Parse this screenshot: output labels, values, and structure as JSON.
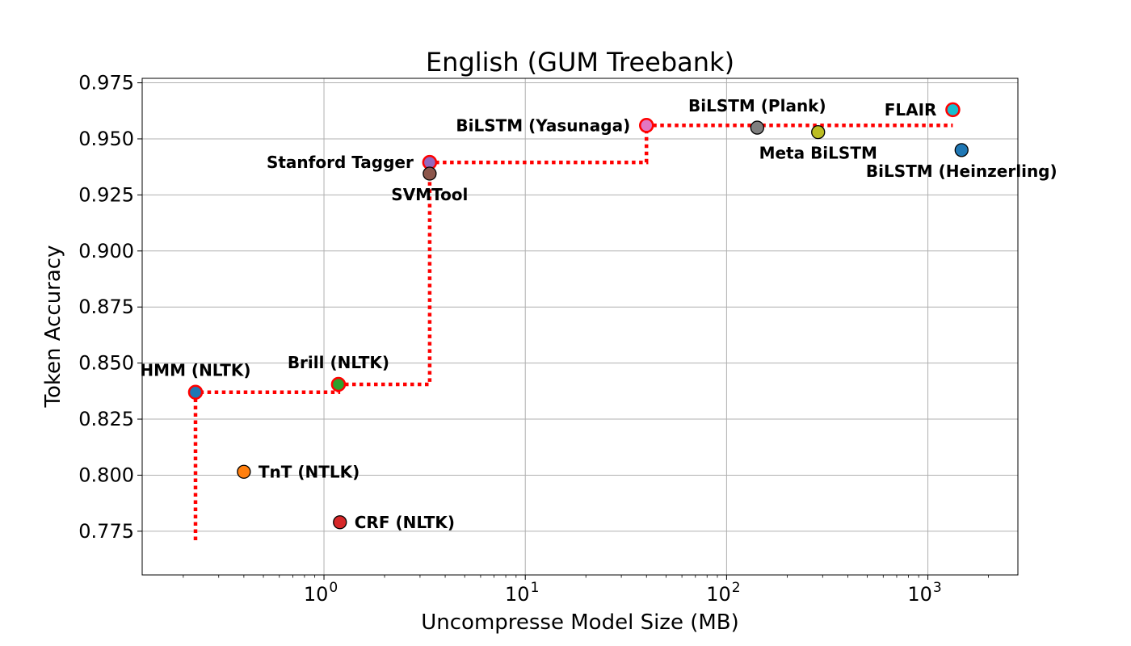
{
  "chart_data": {
    "type": "scatter",
    "title": "English (GUM Treebank)",
    "xlabel": "Uncompresse Model Size (MB)",
    "ylabel": "Token Accuracy",
    "x_scale": "log",
    "xlim": [
      0.125,
      2800
    ],
    "ylim": [
      0.7555,
      0.977
    ],
    "x_ticks": [
      {
        "value": 1,
        "base": "10",
        "exp": "0"
      },
      {
        "value": 10,
        "base": "10",
        "exp": "1"
      },
      {
        "value": 100,
        "base": "10",
        "exp": "2"
      },
      {
        "value": 1000,
        "base": "10",
        "exp": "3"
      }
    ],
    "y_ticks": [
      {
        "value": 0.775,
        "label": "0.775"
      },
      {
        "value": 0.8,
        "label": "0.800"
      },
      {
        "value": 0.825,
        "label": "0.825"
      },
      {
        "value": 0.85,
        "label": "0.850"
      },
      {
        "value": 0.875,
        "label": "0.875"
      },
      {
        "value": 0.9,
        "label": "0.900"
      },
      {
        "value": 0.925,
        "label": "0.925"
      },
      {
        "value": 0.95,
        "label": "0.950"
      },
      {
        "value": 0.975,
        "label": "0.975"
      }
    ],
    "grid": true,
    "points": [
      {
        "name": "HMM (NLTK)",
        "x": 0.23,
        "y": 0.837,
        "color": "#1f77b4",
        "pareto": true,
        "label_pos": "above"
      },
      {
        "name": "TnT (NTLK)",
        "x": 0.4,
        "y": 0.8015,
        "color": "#ff7f0e",
        "pareto": false,
        "label_pos": "right"
      },
      {
        "name": "Brill (NLTK)",
        "x": 1.18,
        "y": 0.8405,
        "color": "#2ca02c",
        "pareto": true,
        "label_pos": "above"
      },
      {
        "name": "CRF (NLTK)",
        "x": 1.2,
        "y": 0.779,
        "color": "#d62728",
        "pareto": false,
        "label_pos": "right"
      },
      {
        "name": "Stanford Tagger",
        "x": 3.35,
        "y": 0.9395,
        "color": "#9467bd",
        "pareto": true,
        "label_pos": "left"
      },
      {
        "name": "SVMTool",
        "x": 3.35,
        "y": 0.9345,
        "color": "#8c564b",
        "pareto": false,
        "label_pos": "below"
      },
      {
        "name": "BiLSTM (Yasunaga)",
        "x": 40,
        "y": 0.956,
        "color": "#e377c2",
        "pareto": true,
        "label_pos": "left"
      },
      {
        "name": "BiLSTM (Plank)",
        "x": 142,
        "y": 0.955,
        "color": "#7f7f7f",
        "pareto": false,
        "label_pos": "above"
      },
      {
        "name": "Meta BiLSTM",
        "x": 285,
        "y": 0.953,
        "color": "#bcbd22",
        "pareto": false,
        "label_pos": "below"
      },
      {
        "name": "FLAIR",
        "x": 1330,
        "y": 0.963,
        "color": "#17becf",
        "pareto": true,
        "label_pos": "left"
      },
      {
        "name": "BiLSTM (Heinzerling)",
        "x": 1470,
        "y": 0.945,
        "color": "#1f77b4",
        "pareto": false,
        "label_pos": "below"
      }
    ],
    "pareto_frontier": {
      "color": "#ff0000",
      "style": "dotted",
      "points": [
        {
          "x": 0.23,
          "y": 0.771
        },
        {
          "x": 0.23,
          "y": 0.837
        },
        {
          "x": 1.18,
          "y": 0.837
        },
        {
          "x": 1.18,
          "y": 0.8405
        },
        {
          "x": 3.35,
          "y": 0.8405
        },
        {
          "x": 3.35,
          "y": 0.9395
        },
        {
          "x": 40,
          "y": 0.9395
        },
        {
          "x": 40,
          "y": 0.956
        },
        {
          "x": 1330,
          "y": 0.956
        }
      ]
    }
  }
}
